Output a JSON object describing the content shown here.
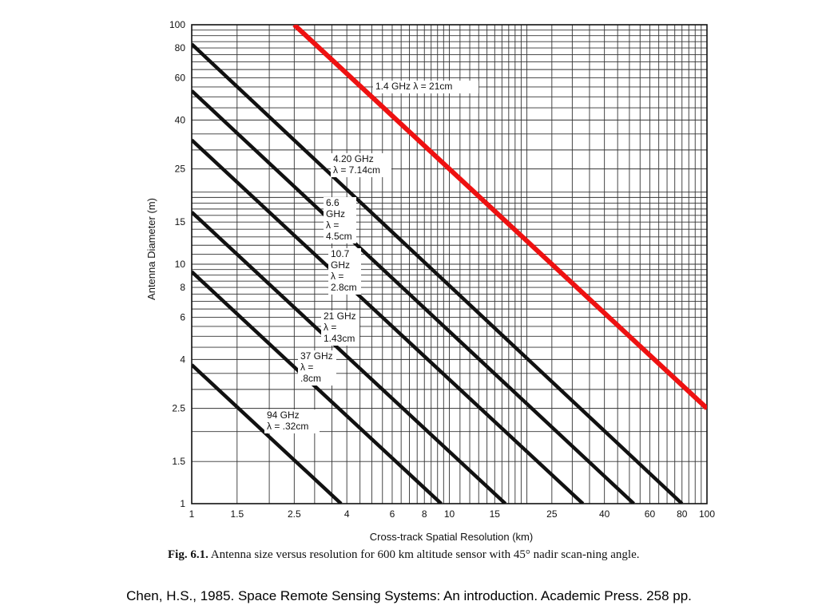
{
  "chart_data": {
    "type": "line",
    "xlabel": "Cross-track Spatial Resolution (km)",
    "ylabel": "Antenna Diameter  (m)",
    "x_scale": "log",
    "y_scale": "log",
    "xlim": [
      1,
      100
    ],
    "ylim": [
      1,
      100
    ],
    "x_ticks": [
      1,
      1.5,
      2.5,
      4,
      6,
      8,
      10,
      15,
      25,
      40,
      60,
      80,
      100
    ],
    "x_tick_labels": [
      "1",
      "1.5",
      "2.5",
      "4",
      "6",
      "8",
      "10",
      "15",
      "25",
      "40",
      "60",
      "80",
      "100"
    ],
    "y_ticks": [
      1,
      1.5,
      2.5,
      4,
      6,
      8,
      10,
      15,
      25,
      40,
      60,
      80,
      100
    ],
    "y_tick_labels": [
      "1",
      "1.5",
      "2.5",
      "4",
      "6",
      "8",
      "10",
      "15",
      "25",
      "40",
      "60",
      "80",
      "100"
    ],
    "grid": true,
    "series": [
      {
        "name": "1.4 GHz  λ = 21cm",
        "label_lines": [
          "1.4 GHz   λ = 21cm"
        ],
        "x": [
          2.5,
          100
        ],
        "y": [
          100,
          2.5
        ],
        "color": "#ee1111",
        "highlight": true
      },
      {
        "name": "4.20 GHz λ = 7.14cm",
        "label_lines": [
          "4.20 GHz",
          "λ = 7.14cm"
        ],
        "x": [
          1,
          80
        ],
        "y": [
          83,
          1
        ],
        "color": "#111111"
      },
      {
        "name": "6.6 GHz λ = 4.5cm",
        "label_lines": [
          "6.6",
          "GHz",
          "λ =",
          "4.5cm"
        ],
        "x": [
          1,
          52
        ],
        "y": [
          53,
          1
        ],
        "color": "#111111"
      },
      {
        "name": "10.7 GHz λ = 2.8cm",
        "label_lines": [
          "10.7",
          "GHz",
          "λ =",
          "2.8cm"
        ],
        "x": [
          1,
          33
        ],
        "y": [
          33,
          1
        ],
        "color": "#111111"
      },
      {
        "name": "21 GHz λ = 1.43cm",
        "label_lines": [
          "21 GHz",
          "λ =",
          "1.43cm"
        ],
        "x": [
          1,
          16.5
        ],
        "y": [
          16.5,
          1
        ],
        "color": "#111111"
      },
      {
        "name": "37 GHz λ = .8cm",
        "label_lines": [
          "37 GHz",
          "λ =",
          ".8cm"
        ],
        "x": [
          1,
          9.3
        ],
        "y": [
          9.3,
          1
        ],
        "color": "#111111"
      },
      {
        "name": "94 GHz λ = .32cm",
        "label_lines": [
          "94 GHz",
          "λ = .32cm"
        ],
        "x": [
          1,
          3.8
        ],
        "y": [
          3.8,
          1
        ],
        "color": "#111111"
      }
    ]
  },
  "caption": {
    "fig_number": "Fig. 6.1.",
    "text": "Antenna size versus resolution for 600 km altitude sensor with 45° nadir scan-ning angle."
  },
  "citation": "Chen, H.S., 1985. Space Remote Sensing Systems: An introduction. Academic Press. 258 pp."
}
